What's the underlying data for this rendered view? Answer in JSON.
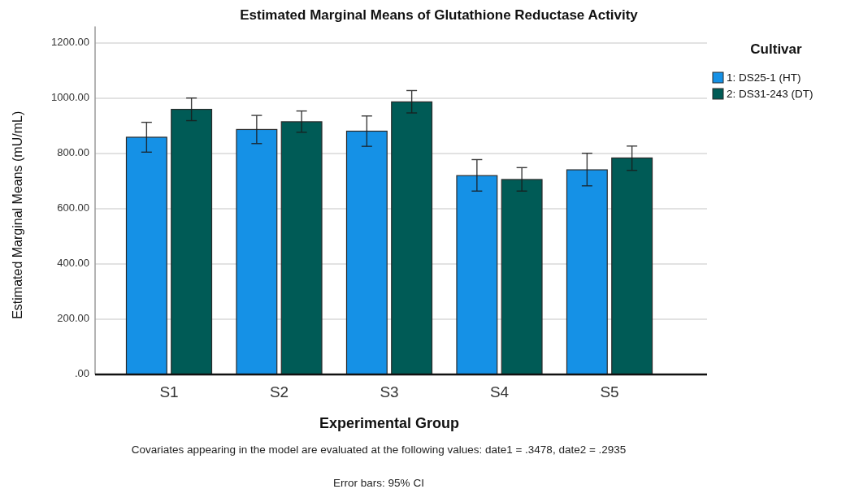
{
  "chart_data": {
    "type": "bar",
    "title": "Estimated Marginal Means of Glutathione Reductase Activity",
    "xlabel": "Experimental Group",
    "ylabel": "Estimated Marginal Means (mU/mL)",
    "legend_title": "Cultivar",
    "categories": [
      "S1",
      "S2",
      "S3",
      "S4",
      "S5"
    ],
    "series": [
      {
        "name": "1: DS25-1 (HT)",
        "color": "#1591e6",
        "values": [
          859,
          887,
          881,
          720,
          741
        ],
        "errors": [
          [
            805,
            913
          ],
          [
            836,
            938
          ],
          [
            826,
            936
          ],
          [
            664,
            778
          ],
          [
            683,
            801
          ]
        ]
      },
      {
        "name": "2: DS31-243 (DT)",
        "color": "#005b56",
        "values": [
          960,
          915,
          987,
          706,
          784
        ],
        "errors": [
          [
            919,
            1001
          ],
          [
            877,
            954
          ],
          [
            947,
            1028
          ],
          [
            664,
            749
          ],
          [
            739,
            827
          ]
        ]
      }
    ],
    "ylim": [
      0,
      1260
    ],
    "yticks": [
      {
        "value": 0,
        "label": ".00"
      },
      {
        "value": 200,
        "label": "200.00"
      },
      {
        "value": 400,
        "label": "400.00"
      },
      {
        "value": 600,
        "label": "600.00"
      },
      {
        "value": 800,
        "label": "800.00"
      },
      {
        "value": 1000,
        "label": "1000.00"
      },
      {
        "value": 1200,
        "label": "1200.00"
      }
    ],
    "grid": "y",
    "legend": "top right",
    "annotations": [
      "Covariates appearing in the model are evaluated at the following values: date1 = .3478, date2 = .2935",
      "Error bars: 95% CI"
    ]
  }
}
